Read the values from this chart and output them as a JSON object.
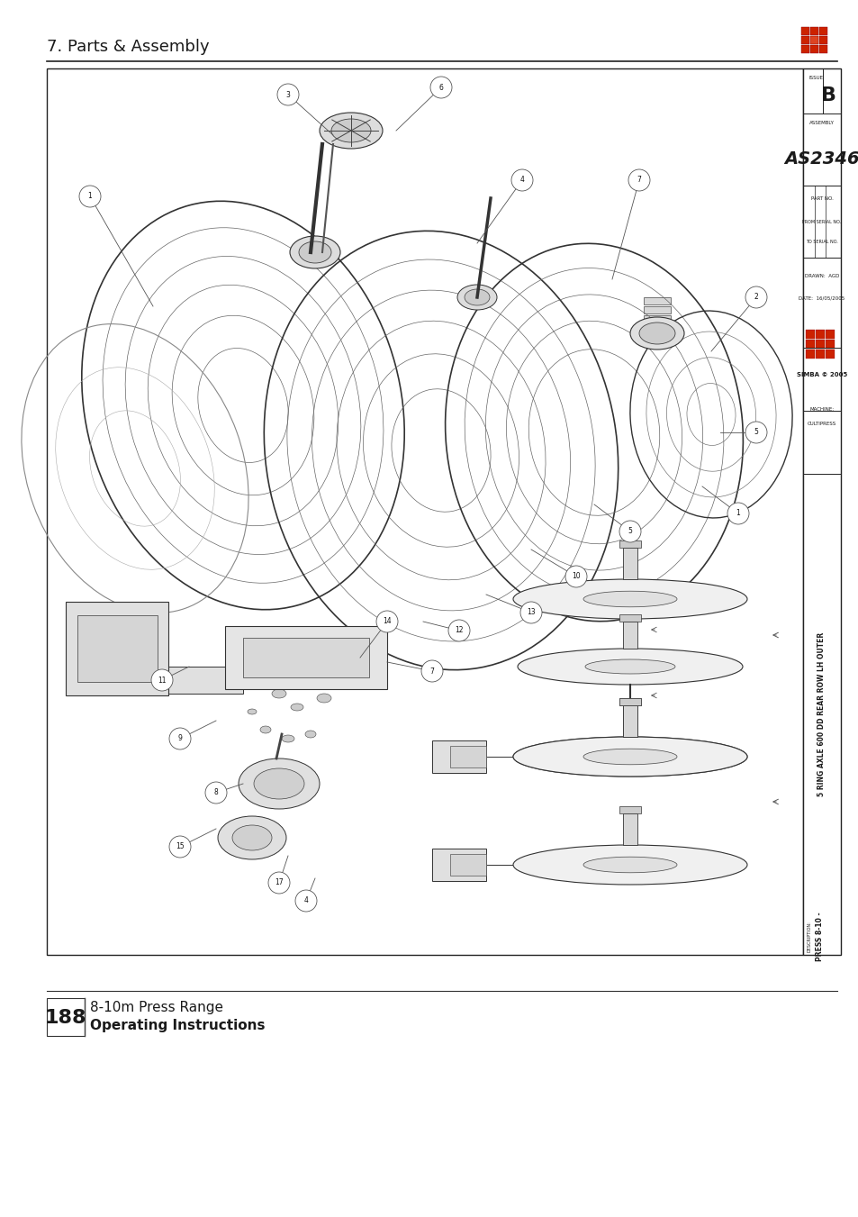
{
  "page_bg": "#ffffff",
  "border_color": "#000000",
  "header_text": "7. Parts & Assembly",
  "header_fontsize": 13,
  "footer_page_num": "188",
  "footer_line1": "8-10m Press Range",
  "footer_line2": "Operating Instructions",
  "simba_logo_color": "#cc2200",
  "sidebar_issue_text": "ISSUE",
  "sidebar_issue_b": "B",
  "sidebar_assembly_label": "ASSEMBLY",
  "sidebar_assembly_num": "AS2346",
  "sidebar_partno": "PART NO.",
  "sidebar_from_serial": "FROM SERIAL NO.",
  "sidebar_to_serial": "TO SERIAL NO.",
  "sidebar_drawn": "DRAWN:  AGD",
  "sidebar_date": "DATE:  16/05/2005",
  "sidebar_simba": "SIMBA © 2005",
  "sidebar_machine_label": "MACHINE:",
  "sidebar_machine_val": "CULTIPRESS",
  "sidebar_desc1": "5 RING AXLE 600 DD REAR ROW LH OUTER",
  "sidebar_desc2": "PRESS 8-10 -",
  "sidebar_desc_label": "DESCRIPTION:",
  "lc": "#222222",
  "gray1": "#cccccc",
  "gray2": "#aaaaaa",
  "gray3": "#888888"
}
